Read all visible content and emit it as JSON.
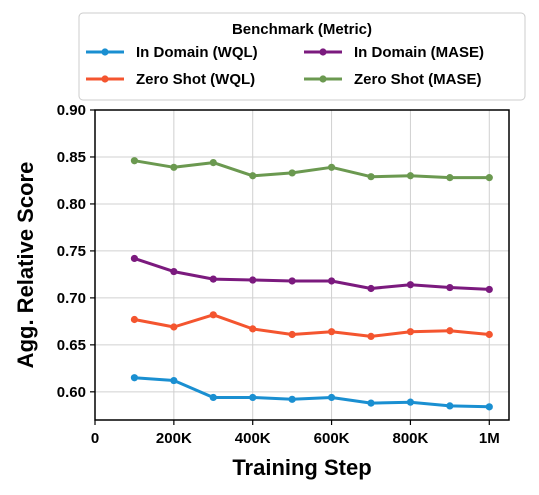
{
  "chart_data": {
    "type": "line",
    "xlabel": "Training Step",
    "ylabel": "Agg. Relative Score",
    "xlim": [
      0,
      1050000
    ],
    "ylim": [
      0.57,
      0.9
    ],
    "x": [
      100000,
      200000,
      300000,
      400000,
      500000,
      600000,
      700000,
      800000,
      900000,
      1000000
    ],
    "x_ticks": [
      0,
      200000,
      400000,
      600000,
      800000,
      1000000
    ],
    "x_tick_labels": [
      "0",
      "200K",
      "400K",
      "600K",
      "800K",
      "1M"
    ],
    "y_ticks": [
      0.6,
      0.65,
      0.7,
      0.75,
      0.8,
      0.85,
      0.9
    ],
    "y_tick_labels": [
      "0.60",
      "0.65",
      "0.70",
      "0.75",
      "0.80",
      "0.85",
      "0.90"
    ],
    "grid": true,
    "legend": {
      "title": "Benchmark (Metric)",
      "placement": "top-outside",
      "columns": 2
    },
    "series": [
      {
        "name": "In Domain (WQL)",
        "color": "#1a8fd1",
        "values": [
          0.615,
          0.612,
          0.594,
          0.594,
          0.592,
          0.594,
          0.588,
          0.589,
          0.585,
          0.584
        ]
      },
      {
        "name": "In Domain (MASE)",
        "color": "#7b1a7e",
        "values": [
          0.742,
          0.728,
          0.72,
          0.719,
          0.718,
          0.718,
          0.71,
          0.714,
          0.711,
          0.709
        ]
      },
      {
        "name": "Zero Shot (WQL)",
        "color": "#f4552f",
        "values": [
          0.677,
          0.669,
          0.682,
          0.667,
          0.661,
          0.664,
          0.659,
          0.664,
          0.665,
          0.661
        ]
      },
      {
        "name": "Zero Shot (MASE)",
        "color": "#6b9950",
        "values": [
          0.846,
          0.839,
          0.844,
          0.83,
          0.833,
          0.839,
          0.829,
          0.83,
          0.828,
          0.828
        ]
      }
    ]
  }
}
